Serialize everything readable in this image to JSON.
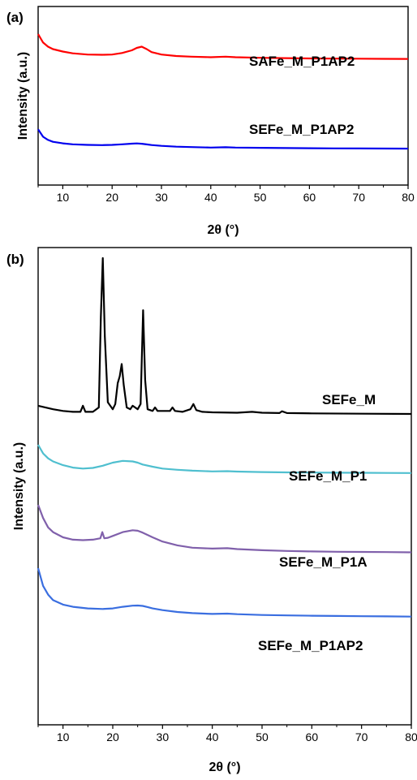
{
  "chart_data": [
    {
      "type": "line",
      "panel_label": "(a)",
      "xlabel": "2θ (°)",
      "ylabel": "Intensity (a.u.)",
      "xlim": [
        5,
        80
      ],
      "xticks": [
        10,
        20,
        30,
        40,
        50,
        60,
        70,
        80
      ],
      "y_ticks_shown": false,
      "grid": false,
      "legend": "labels placed beside curves",
      "series": [
        {
          "name": "SAFe_M_P1AP2",
          "color": "#ff0000",
          "x": [
            5,
            6,
            7,
            8,
            10,
            12,
            15,
            18,
            20,
            22,
            24,
            25,
            26,
            27,
            28,
            30,
            33,
            36,
            40,
            43,
            45,
            50,
            55,
            60,
            65,
            70,
            75,
            80
          ],
          "y": [
            100,
            86,
            79,
            75,
            71,
            68,
            66,
            65.5,
            66,
            68.5,
            73,
            77,
            79,
            75,
            70,
            66,
            63.5,
            62.5,
            61.5,
            62.5,
            61.5,
            60.5,
            60,
            59.5,
            59.2,
            59,
            58.8,
            58.6
          ]
        },
        {
          "name": "SEFe_M_P1AP2",
          "color": "#0000ee",
          "x": [
            5,
            6,
            7,
            8,
            10,
            12,
            15,
            18,
            20,
            22,
            24,
            25,
            26,
            27,
            28,
            30,
            33,
            36,
            40,
            43,
            45,
            50,
            55,
            60,
            65,
            70,
            75,
            80
          ],
          "y": [
            49,
            37,
            32,
            29,
            26.5,
            25,
            24,
            23.6,
            24,
            25,
            26,
            26.4,
            25.8,
            24.8,
            23.8,
            22.5,
            21.2,
            20.5,
            19.8,
            20.2,
            19.8,
            19.3,
            19,
            18.7,
            18.5,
            18.3,
            18.2,
            18
          ]
        }
      ]
    },
    {
      "type": "line",
      "panel_label": "(b)",
      "xlabel": "2θ (°)",
      "ylabel": "Intensity (a.u.)",
      "xlim": [
        5,
        80
      ],
      "xticks": [
        10,
        20,
        30,
        40,
        50,
        60,
        70,
        80
      ],
      "y_ticks_shown": false,
      "grid": false,
      "legend": "labels placed beside curves",
      "series": [
        {
          "name": "SEFe_M",
          "color": "#000000",
          "x": [
            5,
            8,
            10,
            12,
            13.5,
            14,
            14.5,
            16,
            17.2,
            17.6,
            18,
            18.4,
            19,
            20,
            20.5,
            21,
            21.4,
            21.8,
            22.2,
            22.8,
            23.5,
            24,
            25,
            25.6,
            26.1,
            26.5,
            27,
            28,
            28.5,
            29,
            30,
            31.5,
            32,
            32.5,
            34,
            35.6,
            36.2,
            36.8,
            38,
            40,
            45,
            48,
            50,
            53.5,
            54,
            55,
            60,
            70,
            80
          ],
          "y": [
            15,
            13,
            12,
            11.5,
            11.5,
            15,
            11.5,
            11.5,
            14,
            66,
            100,
            55,
            17,
            13,
            16,
            28,
            32,
            39,
            27,
            14,
            13,
            15,
            13,
            16,
            70,
            30,
            13,
            12,
            14,
            12,
            12,
            12,
            14,
            12,
            11.5,
            13,
            16,
            12.5,
            11.5,
            11.2,
            11,
            11.5,
            11,
            10.8,
            11.8,
            10.8,
            10.6,
            10.4,
            10.3
          ]
        },
        {
          "name": "SEFe_M_P1",
          "color": "#4fbfcf",
          "x": [
            5,
            6,
            7,
            8,
            10,
            12,
            14,
            16,
            18,
            20,
            22,
            24,
            25,
            26,
            28,
            30,
            33,
            36,
            40,
            43,
            45,
            50,
            55,
            60,
            65,
            70,
            75,
            80
          ],
          "y": [
            100,
            86,
            78,
            73,
            67,
            63,
            61.5,
            62.5,
            66,
            71,
            74,
            73,
            71,
            68,
            64.5,
            61.5,
            59.5,
            58,
            56.8,
            57.2,
            56.6,
            55.8,
            55.3,
            55,
            54.8,
            54.6,
            54.4,
            54.2
          ]
        },
        {
          "name": "SEFe_M_P1A",
          "color": "#8060ab",
          "x": [
            5,
            6,
            7,
            8,
            10,
            12,
            14,
            16,
            17.5,
            17.9,
            18.3,
            19,
            20,
            22,
            24,
            25,
            26,
            28,
            30,
            33,
            36,
            40,
            43,
            45,
            50,
            55,
            60,
            65,
            70,
            75,
            80
          ],
          "y": [
            100,
            86,
            76,
            71,
            65.5,
            63,
            62.5,
            63,
            64.5,
            71,
            64.5,
            65,
            67,
            71,
            73,
            72.5,
            70.5,
            65.5,
            61,
            57,
            54.5,
            53.5,
            54,
            53,
            51.8,
            51,
            50.5,
            50.2,
            50,
            49.8,
            49.6
          ]
        },
        {
          "name": "SEFe_M_P1AP2",
          "color": "#3a6ee0",
          "x": [
            5,
            6,
            7,
            8,
            10,
            12,
            15,
            18,
            20,
            22,
            24,
            25,
            26,
            27,
            28,
            30,
            33,
            36,
            40,
            43,
            45,
            50,
            55,
            60,
            65,
            70,
            75,
            80
          ],
          "y": [
            100,
            84,
            76,
            71,
            67,
            65,
            63.5,
            63,
            63.5,
            65,
            66,
            66.2,
            65.8,
            64.8,
            63.5,
            62,
            60.3,
            59.3,
            58.5,
            58.8,
            58.3,
            57.6,
            57.2,
            56.9,
            56.7,
            56.5,
            56.3,
            56.1
          ]
        }
      ]
    }
  ]
}
